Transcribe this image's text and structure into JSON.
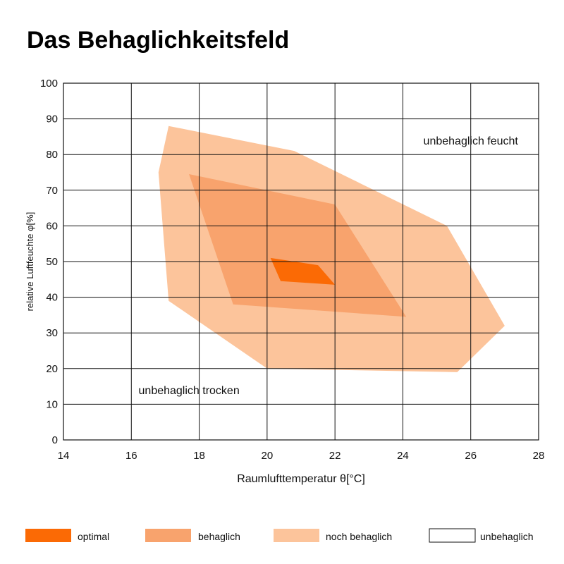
{
  "chart_data": {
    "type": "area",
    "title": "Das Behaglichkeitsfeld",
    "xlabel": "Raumlufttemperatur θ[°C]",
    "ylabel": "relative Luftfeuchte φ[%]",
    "xlim": [
      14,
      28
    ],
    "ylim": [
      0,
      100
    ],
    "xticks": [
      14,
      16,
      18,
      20,
      22,
      24,
      26,
      28
    ],
    "yticks": [
      0,
      10,
      20,
      30,
      40,
      50,
      60,
      70,
      80,
      90,
      100
    ],
    "grid": true,
    "legend_position": "bottom",
    "series": [
      {
        "name": "noch behaglich",
        "color": "#fcc49b",
        "points": [
          [
            17.1,
            88
          ],
          [
            20.8,
            81
          ],
          [
            25.3,
            60
          ],
          [
            27.0,
            32
          ],
          [
            25.6,
            19
          ],
          [
            20.0,
            20
          ],
          [
            17.1,
            39
          ],
          [
            16.8,
            75
          ]
        ]
      },
      {
        "name": "behaglich",
        "color": "#f8a36d",
        "points": [
          [
            17.7,
            74.5
          ],
          [
            22.0,
            66
          ],
          [
            24.1,
            34.5
          ],
          [
            19.0,
            38
          ]
        ]
      },
      {
        "name": "optimal",
        "color": "#fb6a05",
        "points": [
          [
            20.1,
            51
          ],
          [
            21.5,
            49
          ],
          [
            22.0,
            43.5
          ],
          [
            20.4,
            44.5
          ]
        ]
      },
      {
        "name": "unbehaglich",
        "color": "#ffffff",
        "points": []
      }
    ],
    "annotations": [
      {
        "text": "unbehaglich feucht",
        "x": 26.0,
        "y": 84
      },
      {
        "text": "unbehaglich trocken",
        "x": 17.7,
        "y": 14
      }
    ]
  }
}
